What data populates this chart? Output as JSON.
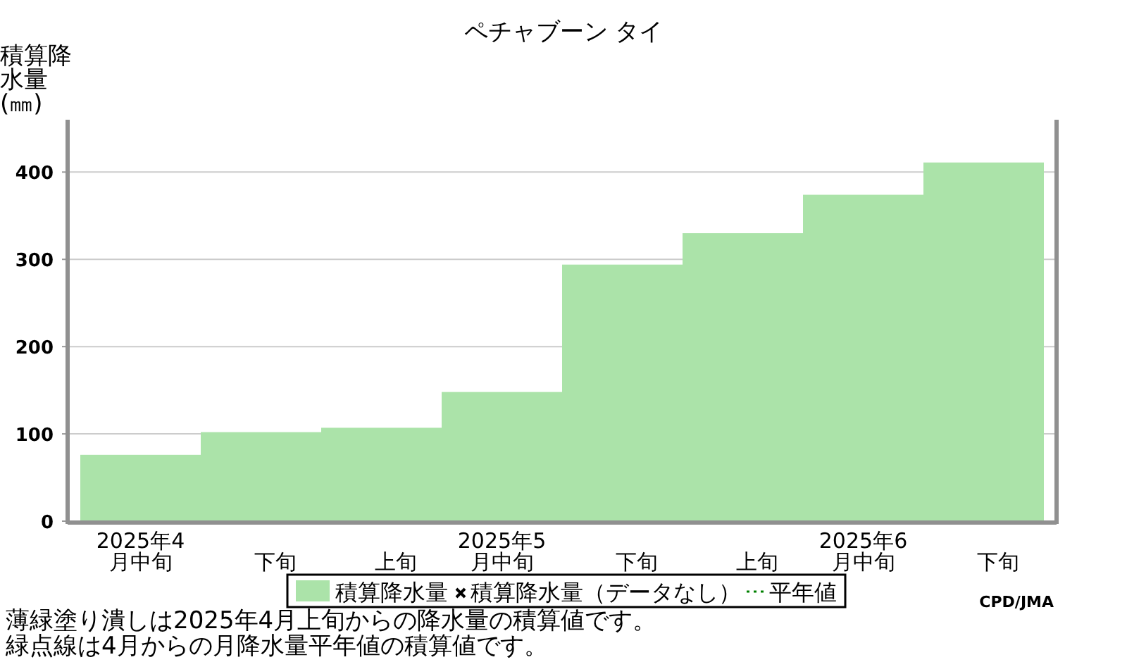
{
  "chart_data": {
    "type": "bar",
    "title": "ペチャブーン タイ",
    "ylabel": "積算降水量(㎜)",
    "categories": [
      "2025年4月中旬",
      "下旬",
      "上旬",
      "2025年5月中旬",
      "下旬",
      "上旬",
      "2025年6月中旬",
      "下旬"
    ],
    "series": [
      {
        "name": "積算降水量",
        "color": "#abe3a9",
        "values": [
          76,
          102,
          107,
          148,
          294,
          330,
          374,
          411
        ]
      },
      {
        "name": "積算降水量（データなし）",
        "type": "scatter",
        "marker": "cross",
        "color": "#000000",
        "values": [
          null,
          null,
          null,
          null,
          null,
          null,
          null,
          null
        ]
      },
      {
        "name": "平年値",
        "type": "line",
        "line_style": "dotted",
        "color": "#008000",
        "values": [
          null,
          null,
          null,
          null,
          null,
          null,
          null,
          null
        ]
      }
    ],
    "ylim": [
      0,
      460
    ],
    "yticks": [
      0,
      100,
      200,
      300,
      400
    ],
    "grid": "y",
    "legend": "bottom",
    "annotations": [
      "CPD/JMA",
      "薄緑塗り潰しは2025年4月上旬からの降水量の積算値です。",
      "緑点線は4月からの月降水量平年値の積算値です。"
    ]
  }
}
